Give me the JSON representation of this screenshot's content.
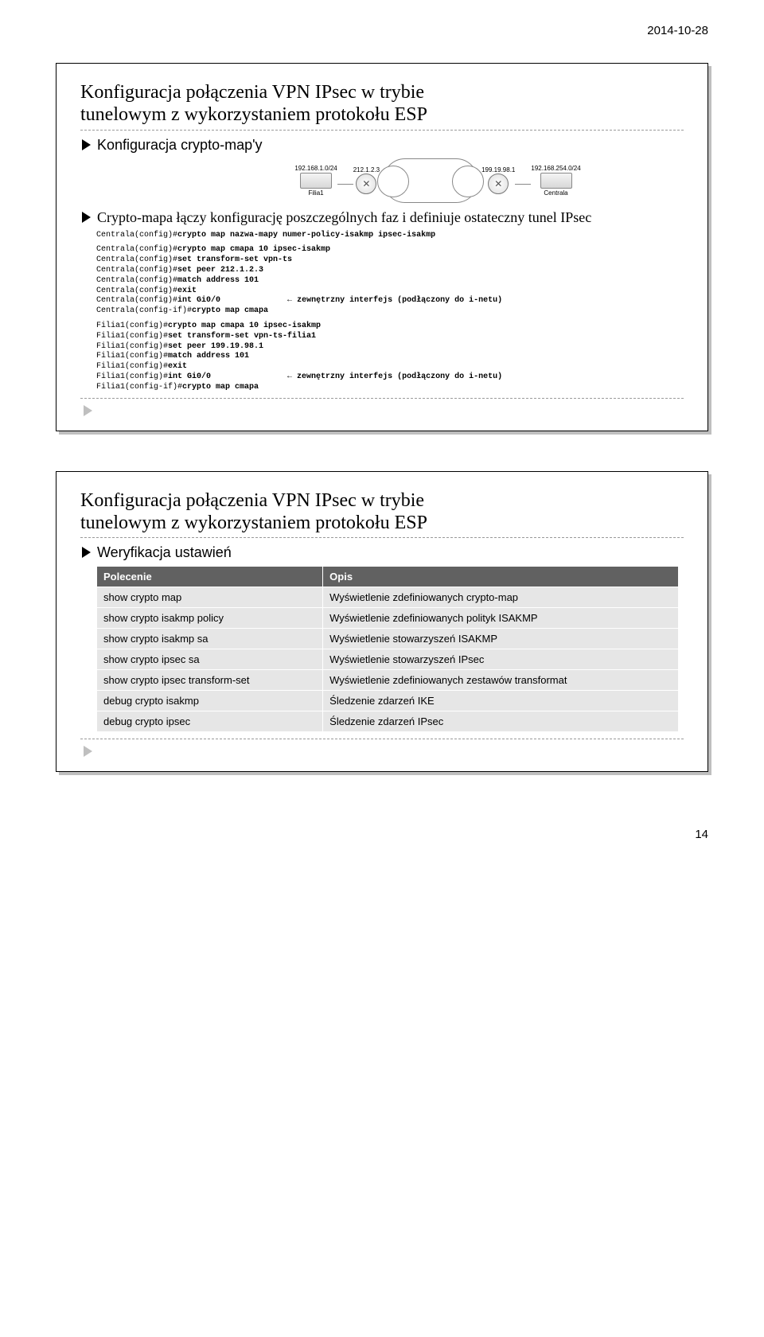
{
  "date": "2014-10-28",
  "page_num": "14",
  "slide1": {
    "title_line1": "Konfiguracja połączenia VPN IPsec w trybie",
    "title_line2": "tunelowym z wykorzystaniem protokołu ESP",
    "bullet1": "Konfiguracja crypto-map'y",
    "bullet2": "Crypto-mapa łączy konfigurację poszczególnych faz i definiuje ostateczny tunel IPsec",
    "diagram": {
      "left_net": "192.168.1.0/24",
      "left_name": "Filia1",
      "left_router_ip": "212.1.2.3",
      "right_router_ip": "199.19.98.1",
      "right_net": "192.168.254.0/24",
      "right_name": "Centrala"
    },
    "code1": "Centrala(config)#crypto map nazwa-mapy numer-policy-isakmp ipsec-isakmp",
    "code2": "Centrala(config)#crypto map cmapa 10 ipsec-isakmp\nCentrala(config)#set transform-set vpn-ts\nCentrala(config)#set peer 212.1.2.3\nCentrala(config)#match address 101\nCentrala(config)#exit\nCentrala(config)#int Gi0/0              ← zewnętrzny interfejs (podłączony do i-netu)\nCentrala(config-if)#crypto map cmapa",
    "code3": "Filia1(config)#crypto map cmapa 10 ipsec-isakmp\nFilia1(config)#set transform-set vpn-ts-filia1\nFilia1(config)#set peer 199.19.98.1\nFilia1(config)#match address 101\nFilia1(config)#exit\nFilia1(config)#int Gi0/0                ← zewnętrzny interfejs (podłączony do i-netu)\nFilia1(config-if)#crypto map cmapa"
  },
  "slide2": {
    "title_line1": "Konfiguracja połączenia VPN IPsec w trybie",
    "title_line2": "tunelowym z wykorzystaniem protokołu ESP",
    "bullet1": "Weryfikacja ustawień",
    "table": {
      "headers": [
        "Polecenie",
        "Opis"
      ],
      "rows": [
        [
          "show crypto map",
          "Wyświetlenie zdefiniowanych crypto-map"
        ],
        [
          "show crypto isakmp policy",
          "Wyświetlenie zdefiniowanych polityk ISAKMP"
        ],
        [
          "show crypto isakmp sa",
          "Wyświetlenie stowarzyszeń ISAKMP"
        ],
        [
          "show crypto ipsec sa",
          "Wyświetlenie stowarzyszeń IPsec"
        ],
        [
          "show crypto ipsec transform-set",
          "Wyświetlenie zdefiniowanych zestawów transformat"
        ],
        [
          "debug crypto isakmp",
          "Śledzenie zdarzeń IKE"
        ],
        [
          "debug crypto ipsec",
          "Śledzenie zdarzeń IPsec"
        ]
      ]
    }
  }
}
